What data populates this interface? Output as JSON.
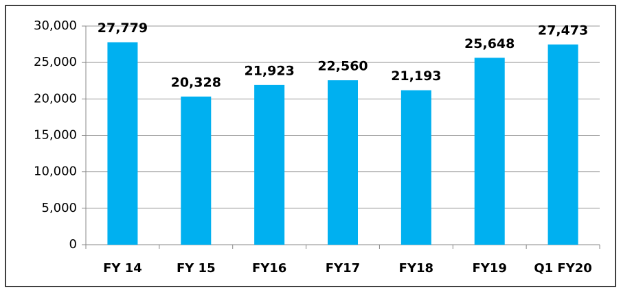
{
  "chart_data": {
    "type": "bar",
    "categories": [
      "FY 14",
      "FY 15",
      "FY16",
      "FY17",
      "FY18",
      "FY19",
      "Q1 FY20"
    ],
    "values": [
      27779,
      20328,
      21923,
      22560,
      21193,
      25648,
      27473
    ],
    "value_labels": [
      "27,779",
      "20,328",
      "21,923",
      "22,560",
      "21,193",
      "25,648",
      "27,473"
    ],
    "color": "#00b0f0",
    "ylim": [
      0,
      30000
    ],
    "yticks": [
      0,
      {
        "value": 5000,
        "label": "5,000"
      },
      {
        "value": 10000,
        "label": "10,000"
      },
      {
        "value": 15000,
        "label": "15,000"
      },
      {
        "value": 20000,
        "label": "20,000"
      },
      {
        "value": 25000,
        "label": "25,000"
      },
      {
        "value": 30000,
        "label": "30,000"
      }
    ],
    "grid": true
  }
}
